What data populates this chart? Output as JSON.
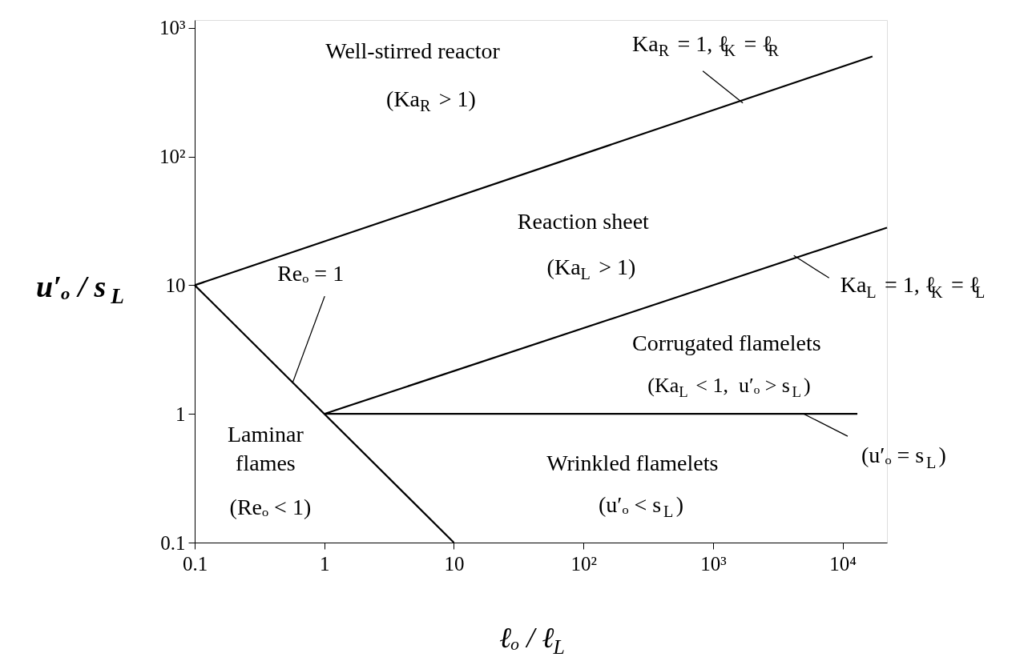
{
  "chart_data": {
    "type": "line",
    "xlabel": "ℓₒ / ℓ$_{L}$",
    "ylabel": "u′ₒ / s$_{L}$",
    "log": "xy",
    "grid": false,
    "marker": "none",
    "line_style": "solid",
    "xlim": [
      0.1,
      22000
    ],
    "ylim": [
      0.1,
      1150
    ],
    "xticks": [
      0.1,
      1,
      10,
      {
        "value": 100,
        "label": "10²"
      },
      {
        "value": 1000,
        "label": "10³"
      },
      {
        "value": 10000,
        "label": "10⁴"
      }
    ],
    "yticks": [
      0.1,
      1,
      10,
      {
        "value": 100,
        "label": "10²"
      },
      {
        "value": 1000,
        "label": "10³"
      }
    ],
    "series": [
      {
        "color": "#000000",
        "x": [
          0.1,
          17000
        ],
        "values": [
          10,
          600
        ]
      },
      {
        "color": "#000000",
        "x": [
          1,
          22000
        ],
        "values": [
          1,
          28
        ]
      },
      {
        "color": "#000000",
        "x": [
          0.1,
          10
        ],
        "values": [
          10,
          0.1
        ]
      },
      {
        "color": "#000000",
        "x": [
          1,
          13000
        ],
        "values": [
          1,
          1
        ]
      }
    ],
    "annotations": [
      "Well-stirred reactor",
      "(Ka$_{R}$ > 1)",
      {
        "text": "Ka$_{R}$ = 1, ℓ$_{K}$ = ℓ$_{R}$",
        "x": 1700,
        "y": 260
      },
      "Reaction sheet",
      "(Ka$_{L}$ > 1)",
      {
        "text": "Ka$_{L}$ = 1, ℓ$_{K}$ = ℓ$_{L}$",
        "x": 4200,
        "y": 17
      },
      "Corrugated flamelets",
      "(Ka$_{L}$ < 1,  u′ₒ > s$_{L}$)",
      {
        "text": "Reₒ = 1",
        "x": 0.57,
        "y": 1.75
      },
      "Laminar\nflames",
      "(Reₒ < 1)",
      "Wrinkled flamelets",
      "(u′ₒ < s$_{L}$)",
      {
        "text": "(u′ₒ = s$_{L}$)",
        "x": 5000,
        "y": 1
      }
    ]
  }
}
